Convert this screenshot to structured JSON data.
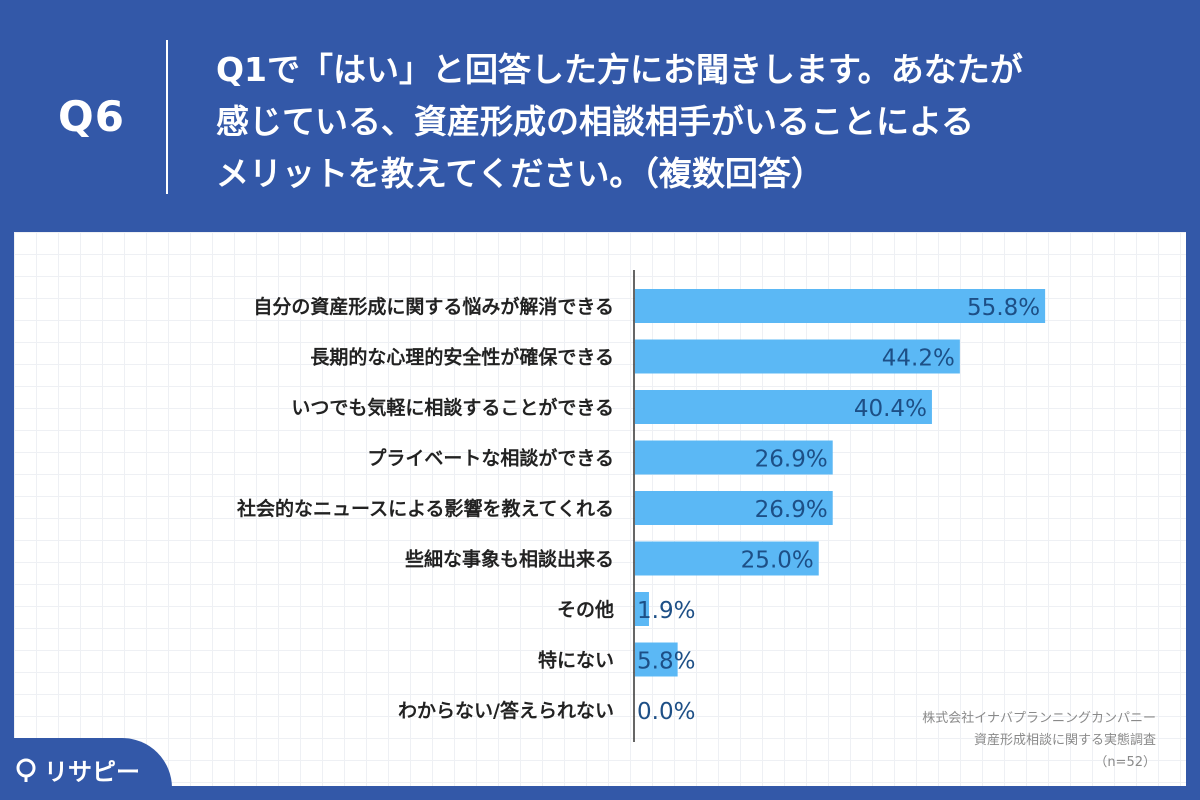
{
  "header": {
    "question_number": "Q6",
    "question_lines": [
      "Q1で「はい」と回答した方にお聞きします。あなたが",
      "感じている、資産形成の相談相手がいることによる",
      "メリットを教えてください。（複数回答）"
    ]
  },
  "source": {
    "lines": [
      "株式会社イナバプランニングカンパニー",
      "資産形成相談に関する実態調査",
      "（n=52）"
    ]
  },
  "logo": {
    "text": "リサピー",
    "icon": "pin-icon"
  },
  "colors": {
    "background": "#3358a8",
    "bar": "#5bb8f5",
    "value_text": "#1d4f86",
    "label_text": "#222222"
  },
  "chart_data": {
    "type": "bar",
    "orientation": "horizontal",
    "categories": [
      "自分の資産形成に関する悩みが解消できる",
      "長期的な心理的安全性が確保できる",
      "いつでも気軽に相談することができる",
      "プライベートな相談ができる",
      "社会的なニュースによる影響を教えてくれる",
      "些細な事象も相談出来る",
      "その他",
      "特にない",
      "わからない/答えられない"
    ],
    "values": [
      55.8,
      44.2,
      40.4,
      26.9,
      26.9,
      25.0,
      1.9,
      5.8,
      0.0
    ],
    "data_labels": [
      "55.8%",
      "44.2%",
      "40.4%",
      "26.9%",
      "26.9%",
      "25.0%",
      "1.9%",
      "5.8%",
      "0.0%"
    ],
    "unit": "%",
    "xlim": [
      0,
      100
    ],
    "grid": true,
    "legend": "none"
  }
}
